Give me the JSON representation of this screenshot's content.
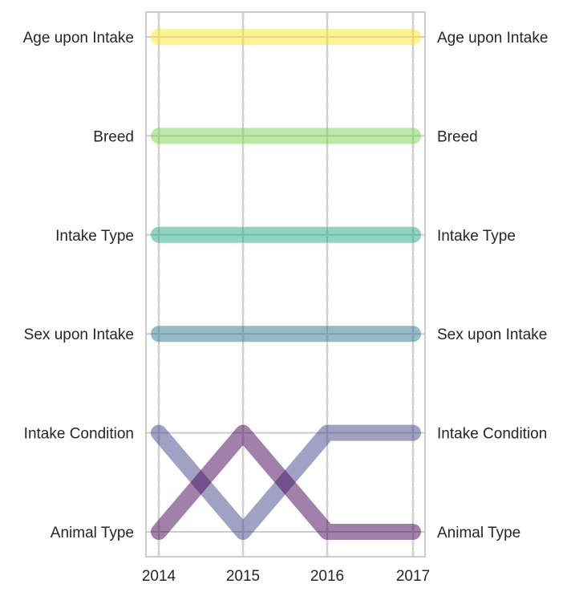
{
  "chart_data": {
    "type": "line",
    "title": "",
    "xlabel": "",
    "ylabel": "",
    "x": [
      "2014",
      "2015",
      "2016",
      "2017"
    ],
    "ranks": [
      "Age upon Intake",
      "Breed",
      "Intake Type",
      "Sex upon Intake",
      "Intake Condition",
      "Animal Type"
    ],
    "series": [
      {
        "name": "Age upon Intake",
        "color": "#fde725",
        "values": [
          "Age upon Intake",
          "Age upon Intake",
          "Age upon Intake",
          "Age upon Intake"
        ]
      },
      {
        "name": "Breed",
        "color": "#7ad151",
        "values": [
          "Breed",
          "Breed",
          "Breed",
          "Breed"
        ]
      },
      {
        "name": "Intake Type",
        "color": "#22a884",
        "values": [
          "Intake Type",
          "Intake Type",
          "Intake Type",
          "Intake Type"
        ]
      },
      {
        "name": "Sex upon Intake",
        "color": "#2a788e",
        "values": [
          "Sex upon Intake",
          "Sex upon Intake",
          "Sex upon Intake",
          "Sex upon Intake"
        ]
      },
      {
        "name": "Intake Condition",
        "color": "#414487",
        "values": [
          "Intake Condition",
          "Animal Type",
          "Intake Condition",
          "Intake Condition"
        ]
      },
      {
        "name": "Animal Type",
        "color": "#440154",
        "values": [
          "Animal Type",
          "Intake Condition",
          "Animal Type",
          "Animal Type"
        ]
      }
    ],
    "grid": true,
    "legend": "none"
  }
}
